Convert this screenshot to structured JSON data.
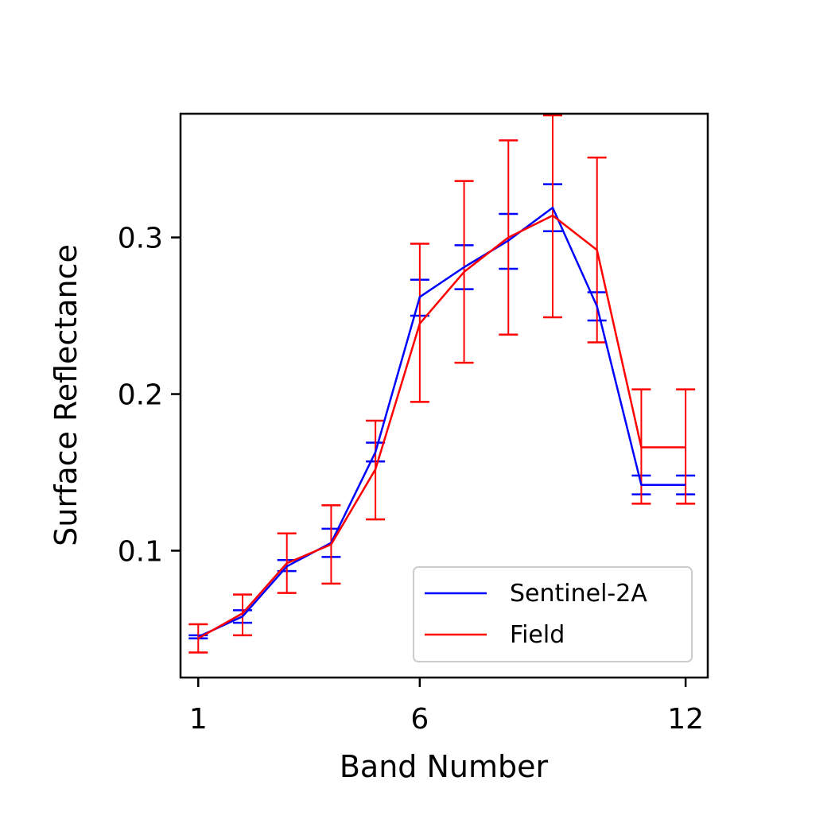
{
  "chart_data": {
    "type": "line",
    "xlabel": "Band Number",
    "ylabel": "Surface Reflectance",
    "xlim": [
      0.6,
      12.5
    ],
    "ylim": [
      0.019,
      0.379
    ],
    "xticks": [
      1,
      6,
      12
    ],
    "xtick_labels": [
      "1",
      "6",
      "12"
    ],
    "yticks": [
      0.1,
      0.2,
      0.3
    ],
    "ytick_labels": [
      "0.1",
      "0.2",
      "0.3"
    ],
    "grid": false,
    "legend_position": "lower-right",
    "x": [
      1,
      2,
      3,
      4,
      5,
      6,
      7,
      8,
      9,
      10,
      11,
      12
    ],
    "series": [
      {
        "name": "Sentinel-2A",
        "color": "#0000ff",
        "values": [
          0.045,
          0.058,
          0.09,
          0.105,
          0.163,
          0.262,
          0.281,
          0.298,
          0.319,
          0.256,
          0.142,
          0.142
        ],
        "err_low": [
          0.044,
          0.054,
          0.087,
          0.096,
          0.157,
          0.25,
          0.267,
          0.28,
          0.304,
          0.247,
          0.136,
          0.136
        ],
        "err_high": [
          0.046,
          0.062,
          0.094,
          0.114,
          0.169,
          0.273,
          0.295,
          0.315,
          0.334,
          0.265,
          0.148,
          0.148
        ]
      },
      {
        "name": "Field",
        "color": "#ff0000",
        "values": [
          0.044,
          0.06,
          0.092,
          0.104,
          0.152,
          0.245,
          0.278,
          0.3,
          0.314,
          0.292,
          0.166,
          0.166
        ],
        "err_low": [
          0.035,
          0.046,
          0.073,
          0.079,
          0.12,
          0.195,
          0.22,
          0.238,
          0.249,
          0.233,
          0.13,
          0.13
        ],
        "err_high": [
          0.053,
          0.072,
          0.111,
          0.129,
          0.183,
          0.296,
          0.336,
          0.362,
          0.378,
          0.351,
          0.203,
          0.203
        ]
      }
    ]
  }
}
